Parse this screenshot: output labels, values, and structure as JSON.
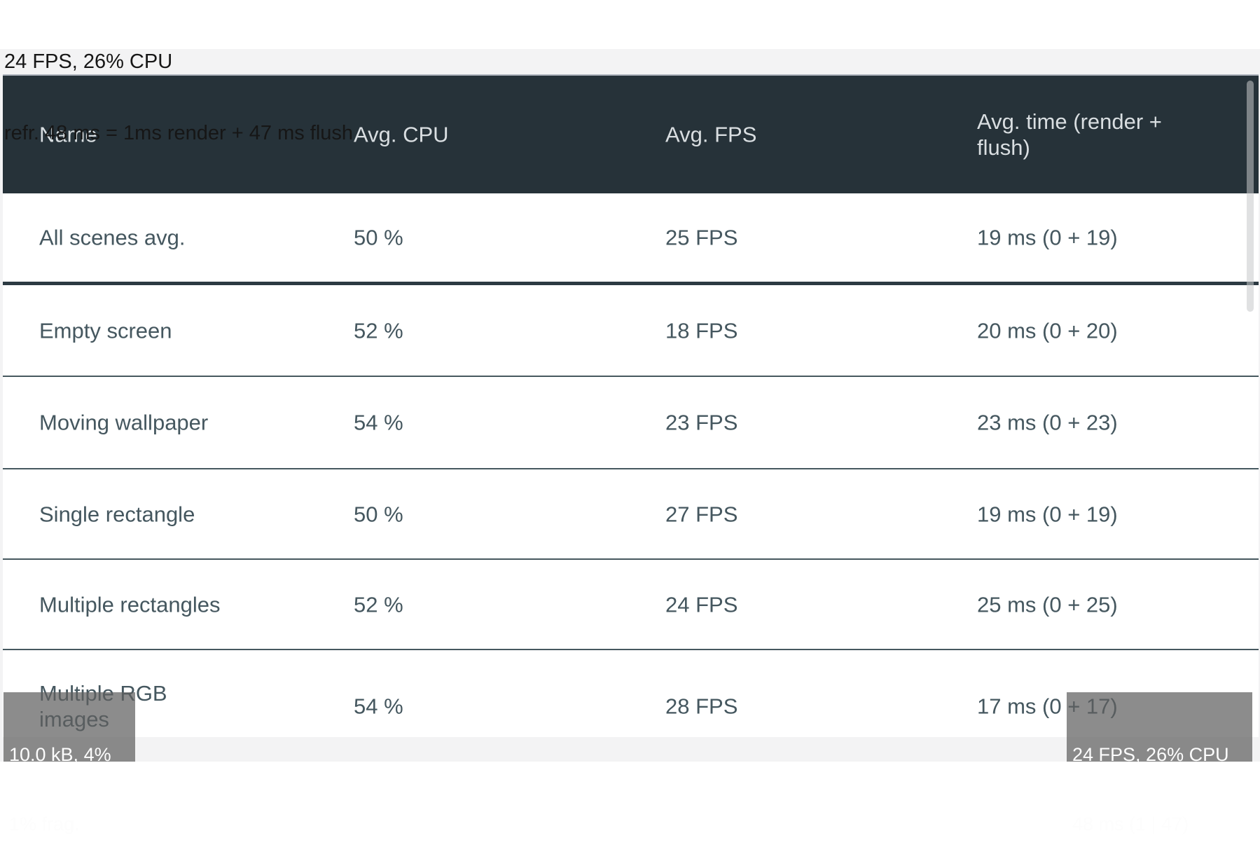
{
  "stats_overlay_top": {
    "line1": "24 FPS, 26% CPU",
    "line2": "refr. 48 ms = 1ms render + 47 ms flush"
  },
  "table": {
    "columns": [
      "Name",
      "Avg. CPU",
      "Avg. FPS",
      "Avg. time (render + flush)"
    ],
    "rows": [
      {
        "name": "All scenes avg.",
        "cpu": "50 %",
        "fps": "25 FPS",
        "time": "19 ms (0 + 19)"
      },
      {
        "name": "Empty screen",
        "cpu": "52 %",
        "fps": "18 FPS",
        "time": "20 ms (0 + 20)"
      },
      {
        "name": "Moving wallpaper",
        "cpu": "54 %",
        "fps": "23 FPS",
        "time": "23 ms (0 + 23)"
      },
      {
        "name": "Single rectangle",
        "cpu": "50 %",
        "fps": "27 FPS",
        "time": "19 ms (0 + 19)"
      },
      {
        "name": "Multiple rectangles",
        "cpu": "52 %",
        "fps": "24 FPS",
        "time": "25 ms (0 + 25)"
      },
      {
        "name": "Multiple RGB images",
        "cpu": "54 %",
        "fps": "28 FPS",
        "time": "17 ms (0 + 17)"
      }
    ]
  },
  "badge_bottom_left": {
    "line1": "10.0 kB, 4%",
    "line2": "1% frag."
  },
  "badge_bottom_right": {
    "line1": "24 FPS, 26% CPU",
    "line2": "48 ms (1 | 47)"
  },
  "colors": {
    "header_bg": "#263239",
    "header_text": "#d9dee1",
    "body_text": "#45575f",
    "separator_thin": "#46585f",
    "separator_thick": "#2c3a42",
    "page_bg": "#f3f3f4",
    "badge_bg": "rgba(95,95,95,0.72)"
  }
}
